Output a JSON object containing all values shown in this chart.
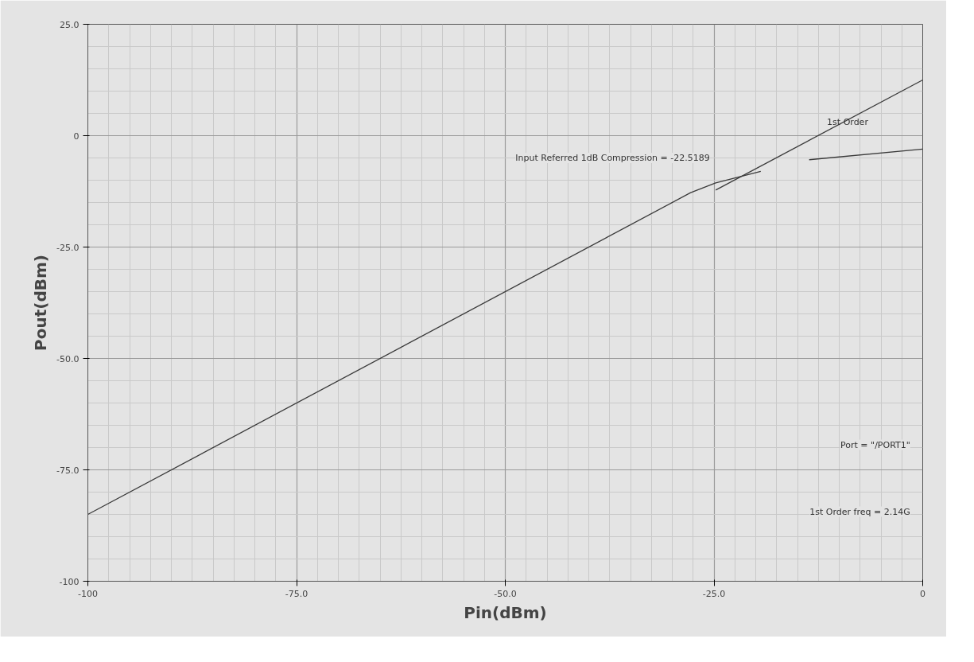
{
  "chart_data": {
    "type": "line",
    "xlabel": "Pin(dBm)",
    "ylabel": "Pout(dBm)",
    "xlim": [
      -100,
      0
    ],
    "ylim": [
      -100,
      25
    ],
    "xticks": [
      -100,
      {
        "value": -75,
        "label": "-75.0"
      },
      {
        "value": -50,
        "label": "-50.0"
      },
      {
        "value": -25,
        "label": "-25.0"
      },
      0
    ],
    "yticks": [
      -100,
      {
        "value": -75,
        "label": "-75.0"
      },
      {
        "value": -50,
        "label": "-50.0"
      },
      {
        "value": -25,
        "label": "-25.0"
      },
      0,
      {
        "value": 25,
        "label": "25.0"
      }
    ],
    "grid": true,
    "marker": "none",
    "line_style": "solid",
    "series": [
      {
        "color": "#3a3a3a",
        "x": [
          -100,
          -27.8,
          -24.8,
          -19.4,
          -16.5,
          -13.6,
          0
        ],
        "values": [
          -85,
          -12.8,
          -10.6,
          -8.0,
          null,
          -5.4,
          -3.0
        ]
      },
      {
        "color": "#3a3a3a",
        "x": [
          -24.8,
          0
        ],
        "values": [
          -12.2,
          12.5
        ]
      }
    ],
    "annotations": [
      {
        "text": "1st Order",
        "x": -9,
        "y": 3
      },
      "Input Referred 1dB Compression = -22.5189",
      "Port = \"/PORT1\"",
      "1st Order freq = 2.14G"
    ]
  }
}
